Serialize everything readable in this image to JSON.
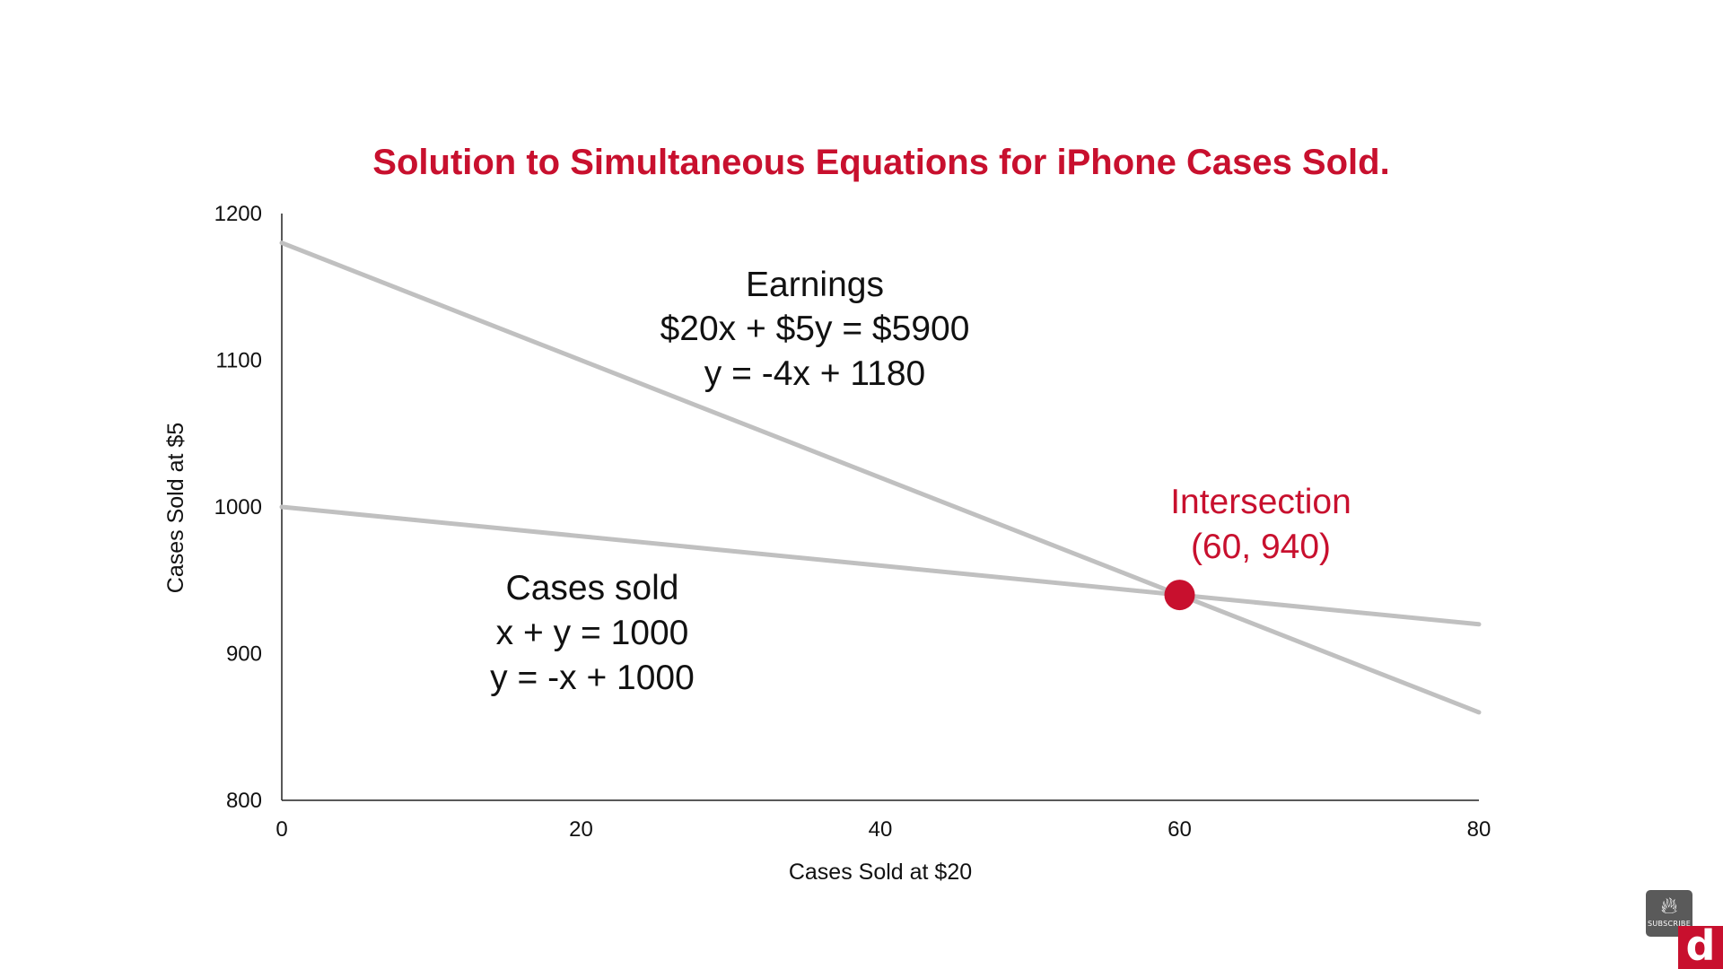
{
  "colors": {
    "title": "#c8102e",
    "line": "#c0c0c0",
    "axis": "#222222",
    "text": "#111111",
    "intersection": "#c8102e",
    "badge_red": "#c8102e",
    "badge_gray": "#5a5a5a"
  },
  "chart_data": {
    "type": "line",
    "title": "Solution to Simultaneous Equations for iPhone Cases Sold.",
    "xlabel": "Cases Sold at $20",
    "ylabel": "Cases Sold at $5",
    "xlim": [
      0,
      80
    ],
    "ylim": [
      800,
      1200
    ],
    "x_ticks": [
      "0",
      "20",
      "40",
      "60",
      "80"
    ],
    "y_ticks": [
      "800",
      "900",
      "1000",
      "1100",
      "1200"
    ],
    "x_tick_values": [
      0,
      20,
      40,
      60,
      80
    ],
    "y_tick_values": [
      800,
      900,
      1000,
      1100,
      1200
    ],
    "grid": false,
    "series": [
      {
        "name": "Earnings",
        "equation": "$20x + $5y = $5900",
        "slope_form": "y = -4x + 1180",
        "x": [
          0,
          80
        ],
        "y": [
          1180,
          860
        ]
      },
      {
        "name": "Cases sold",
        "equation": "x + y = 1000",
        "slope_form": "y = -x + 1000",
        "x": [
          0,
          80
        ],
        "y": [
          1000,
          920
        ]
      }
    ],
    "intersection": {
      "label": "Intersection",
      "coords_text": "(60, 940)",
      "x": 60,
      "y": 940
    }
  },
  "badges": {
    "subscribe_icon": "flame-icon",
    "subscribe_label": "SUBSCRIBE",
    "channel_letter": "d"
  }
}
